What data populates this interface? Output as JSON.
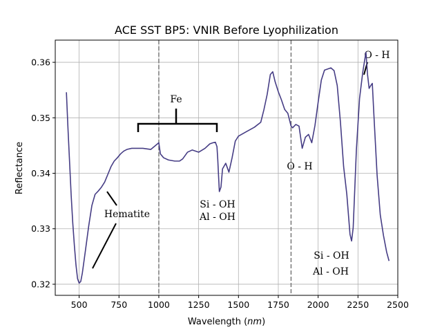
{
  "chart_data": {
    "type": "line",
    "title": "ACE SST BP5: VNIR Before Lyophilization",
    "xlabel_prefix": "Wavelength (",
    "xlabel_unit": "nm",
    "xlabel_suffix": ")",
    "ylabel": "Reflectance",
    "xlim": [
      350,
      2500
    ],
    "ylim": [
      0.318,
      0.364
    ],
    "xticks": [
      500,
      750,
      1000,
      1250,
      1500,
      1750,
      2000,
      2250,
      2500
    ],
    "yticks": [
      0.32,
      0.33,
      0.34,
      0.35,
      0.36
    ],
    "ytick_labels": [
      "0.32",
      "0.33",
      "0.34",
      "0.35",
      "0.36"
    ],
    "grid": true,
    "line_color": "#453c84",
    "series": [
      {
        "x": [
          420,
          430,
          440,
          450,
          460,
          470,
          480,
          490,
          500,
          510,
          520,
          540,
          560,
          580,
          600,
          620,
          640,
          660,
          680,
          700,
          720,
          740,
          760,
          780,
          800,
          830,
          860,
          900,
          950,
          1000,
          1010,
          1030,
          1060,
          1100,
          1130,
          1150,
          1180,
          1210,
          1250,
          1290,
          1320,
          1340,
          1355,
          1365,
          1370,
          1375,
          1380,
          1390,
          1400,
          1420,
          1440,
          1460,
          1480,
          1500,
          1550,
          1600,
          1640,
          1660,
          1680,
          1700,
          1715,
          1730,
          1750,
          1770,
          1790,
          1810,
          1830,
          1840,
          1860,
          1880,
          1900,
          1920,
          1940,
          1960,
          1980,
          2000,
          2020,
          2040,
          2060,
          2080,
          2100,
          2120,
          2140,
          2160,
          2180,
          2200,
          2210,
          2220,
          2240,
          2260,
          2280,
          2300,
          2310,
          2320,
          2330,
          2340,
          2350,
          2370,
          2390,
          2410,
          2430,
          2445
        ],
        "y": [
          0.3546,
          0.348,
          0.342,
          0.336,
          0.331,
          0.327,
          0.3235,
          0.321,
          0.3202,
          0.3205,
          0.322,
          0.3262,
          0.3305,
          0.3342,
          0.3362,
          0.3368,
          0.3375,
          0.3384,
          0.3398,
          0.3412,
          0.3422,
          0.3428,
          0.3435,
          0.344,
          0.3443,
          0.3445,
          0.3445,
          0.3445,
          0.3443,
          0.3455,
          0.3435,
          0.3428,
          0.3424,
          0.3422,
          0.3422,
          0.3426,
          0.3438,
          0.3442,
          0.3438,
          0.3445,
          0.3453,
          0.3455,
          0.3456,
          0.3448,
          0.3425,
          0.3395,
          0.3367,
          0.3375,
          0.3408,
          0.3418,
          0.3402,
          0.3428,
          0.3458,
          0.3467,
          0.3475,
          0.3483,
          0.3492,
          0.3515,
          0.3542,
          0.3578,
          0.3583,
          0.3565,
          0.3547,
          0.3532,
          0.3515,
          0.3508,
          0.3485,
          0.3482,
          0.3488,
          0.3485,
          0.3445,
          0.3465,
          0.347,
          0.3455,
          0.3486,
          0.3528,
          0.3568,
          0.3586,
          0.3588,
          0.359,
          0.3585,
          0.3558,
          0.3492,
          0.3412,
          0.3362,
          0.329,
          0.3278,
          0.3302,
          0.3442,
          0.3535,
          0.3582,
          0.3618,
          0.3578,
          0.3553,
          0.3558,
          0.3562,
          0.3505,
          0.3397,
          0.3325,
          0.3288,
          0.3258,
          0.3242
        ]
      }
    ],
    "vlines": [
      1000,
      1830
    ],
    "annotations": {
      "fe": "Fe",
      "hematite": "Hematite",
      "oh_mid": "O - H",
      "oh_right": "O - H",
      "sioh_mid": "Si - OH",
      "aloh_mid": "Al - OH",
      "sioh_right": "Si - OH",
      "aloh_right": "Al - OH"
    }
  }
}
